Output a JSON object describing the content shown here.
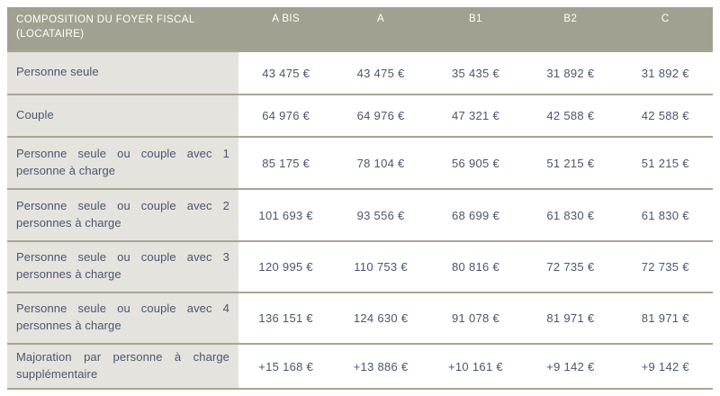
{
  "table": {
    "header": {
      "label": "COMPOSITION DU FOYER FISCAL (LOCATAIRE)",
      "columns": [
        "A BIS",
        "A",
        "B1",
        "B2",
        "C"
      ]
    },
    "rows": [
      {
        "label": "Personne seule",
        "values": [
          "43 475 €",
          "43 475 €",
          "35 435 €",
          "31 892 €",
          "31 892 €"
        ]
      },
      {
        "label": "Couple",
        "values": [
          "64 976 €",
          "64 976 €",
          "47 321 €",
          "42 588 €",
          "42 588 €"
        ]
      },
      {
        "label": "Personne seule ou couple avec 1 personne à charge",
        "values": [
          "85 175 €",
          "78 104 €",
          "56 905 €",
          "51 215 €",
          "51 215 €"
        ]
      },
      {
        "label": "Personne seule ou couple avec 2 personnes à charge",
        "values": [
          "101 693 €",
          "93 556 €",
          "68 699 €",
          "61 830 €",
          "61 830 €"
        ]
      },
      {
        "label": "Personne seule ou couple avec 3 personnes à charge",
        "values": [
          "120 995 €",
          "110 753 €",
          "80 816 €",
          "72 735 €",
          "72 735 €"
        ]
      },
      {
        "label": "Personne seule ou couple avec 4 personnes à charge",
        "values": [
          "136 151 €",
          "124 630 €",
          "91 078 €",
          "81 971 €",
          "81 971 €"
        ]
      },
      {
        "label": "Majoration par personne à charge supplémentaire",
        "values": [
          "+15 168 €",
          "+13 886 €",
          "+10 161 €",
          "+9 142 €",
          "+9 142 €"
        ]
      }
    ]
  },
  "colors": {
    "header_bg": "#a2a090",
    "header_text": "#ffffff",
    "label_cell_bg": "#e4e3de",
    "row_separator": "#a9a593",
    "value_text": "#4a566f"
  }
}
